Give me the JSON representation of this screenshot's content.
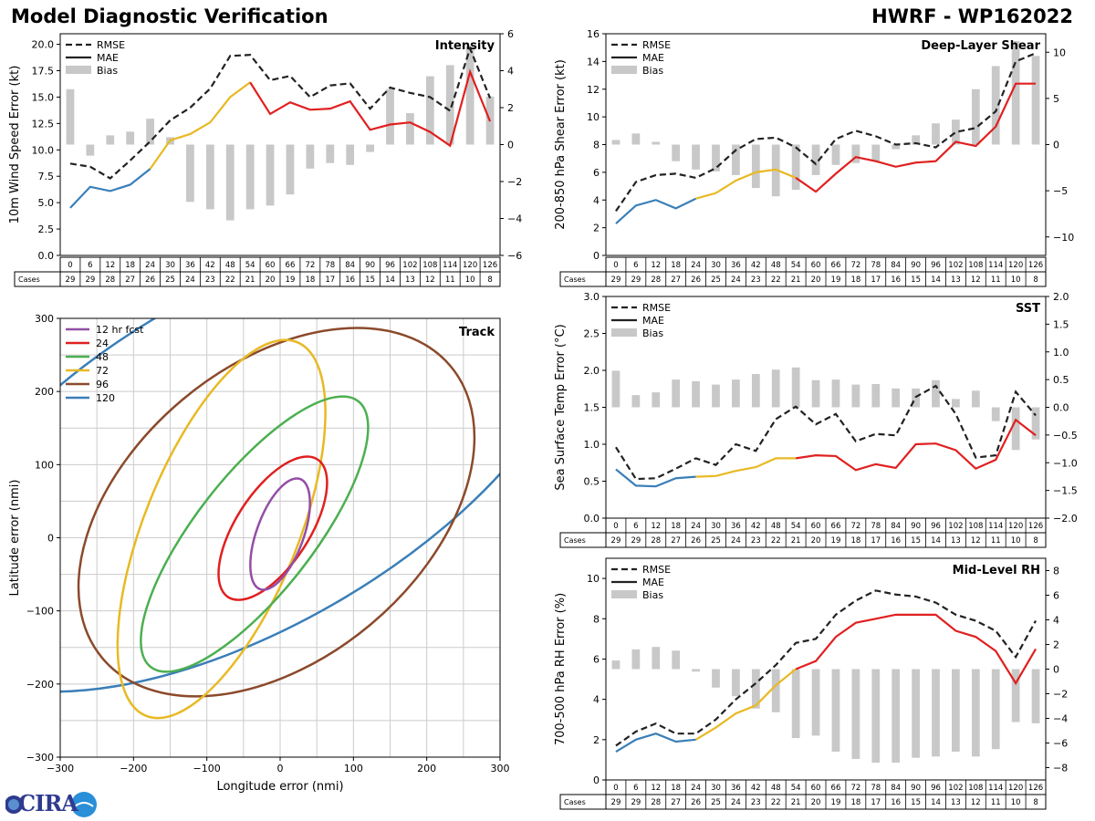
{
  "header": {
    "title": "Model Diagnostic Verification",
    "model": "HWRF - WP162022"
  },
  "logo": {
    "text": "CIRA"
  },
  "colors": {
    "early": "#3a7fb8",
    "mid": "#e8b923",
    "late": "#e02020",
    "rmse": "#222222",
    "bias": "#c8c8c8"
  },
  "legend_labels": {
    "rmse": "RMSE",
    "mae": "MAE",
    "bias": "Bias"
  },
  "cases_label": "Cases",
  "chart_data": [
    {
      "id": "intensity",
      "type": "line",
      "title": "Intensity",
      "ylabel": "10m Wind Speed Error (kt)",
      "ylim": [
        0,
        21
      ],
      "yticks": [
        0.0,
        2.5,
        5.0,
        7.5,
        10.0,
        12.5,
        15.0,
        17.5,
        20.0
      ],
      "ytick_decimals": 1,
      "y2lim": [
        -6,
        6
      ],
      "y2ticks": [
        -6,
        -4,
        -2,
        0,
        2,
        4,
        6
      ],
      "x": [
        0,
        6,
        12,
        18,
        24,
        30,
        36,
        42,
        48,
        54,
        60,
        66,
        72,
        78,
        84,
        90,
        96,
        102,
        108,
        114,
        120,
        126
      ],
      "cases": [
        29,
        29,
        28,
        27,
        26,
        25,
        24,
        23,
        22,
        21,
        20,
        19,
        18,
        17,
        16,
        15,
        14,
        13,
        12,
        11,
        10,
        8
      ],
      "series": [
        {
          "name": "RMSE",
          "values": [
            8.7,
            8.4,
            7.3,
            9.0,
            10.8,
            12.8,
            14.0,
            15.8,
            18.9,
            19.0,
            16.6,
            17.0,
            15.0,
            16.1,
            16.3,
            13.9,
            15.9,
            15.4,
            15.0,
            13.7,
            19.6,
            14.9
          ]
        },
        {
          "name": "MAE",
          "values": [
            4.5,
            6.5,
            6.1,
            6.7,
            8.2,
            10.9,
            11.5,
            12.6,
            15.0,
            16.4,
            13.4,
            14.5,
            13.8,
            13.9,
            14.6,
            11.9,
            12.4,
            12.6,
            11.7,
            10.4,
            17.4,
            12.7
          ]
        },
        {
          "name": "Bias",
          "axis": "right",
          "values": [
            3.0,
            -0.6,
            0.5,
            0.7,
            1.4,
            0.4,
            -3.1,
            -3.5,
            -4.1,
            -3.5,
            -3.3,
            -2.7,
            -1.3,
            -1.0,
            -1.1,
            -0.4,
            3.0,
            1.7,
            3.7,
            4.3,
            5.3,
            2.6
          ]
        }
      ]
    },
    {
      "id": "shear",
      "type": "line",
      "title": "Deep-Layer Shear",
      "ylabel": "200-850 hPa Shear Error (kt)",
      "ylim": [
        0,
        16
      ],
      "yticks": [
        0,
        2,
        4,
        6,
        8,
        10,
        12,
        14,
        16
      ],
      "ytick_decimals": 0,
      "y2lim": [
        -12,
        12
      ],
      "y2ticks": [
        -10,
        -5,
        0,
        5,
        10
      ],
      "x": [
        0,
        6,
        12,
        18,
        24,
        30,
        36,
        42,
        48,
        54,
        60,
        66,
        72,
        78,
        84,
        90,
        96,
        102,
        108,
        114,
        120,
        126
      ],
      "cases": [
        29,
        29,
        28,
        27,
        26,
        25,
        24,
        23,
        22,
        21,
        20,
        19,
        18,
        17,
        16,
        15,
        14,
        13,
        12,
        11,
        10,
        8
      ],
      "series": [
        {
          "name": "RMSE",
          "values": [
            3.2,
            5.3,
            5.8,
            5.9,
            5.6,
            6.3,
            7.6,
            8.4,
            8.5,
            7.8,
            6.6,
            8.4,
            9.0,
            8.6,
            8.0,
            8.1,
            7.8,
            8.9,
            9.2,
            10.4,
            14.0,
            14.6
          ]
        },
        {
          "name": "MAE",
          "values": [
            2.3,
            3.6,
            4.0,
            3.4,
            4.1,
            4.5,
            5.4,
            6.0,
            6.2,
            5.6,
            4.6,
            5.9,
            7.1,
            6.8,
            6.4,
            6.7,
            6.8,
            8.2,
            7.9,
            9.3,
            12.4,
            12.4
          ]
        },
        {
          "name": "Bias",
          "axis": "right",
          "values": [
            0.5,
            1.2,
            0.3,
            -1.8,
            -2.7,
            -2.9,
            -3.3,
            -4.7,
            -5.6,
            -4.9,
            -3.3,
            -2.2,
            -2.0,
            -1.8,
            -0.5,
            1.0,
            2.3,
            2.7,
            6.0,
            8.5,
            11.2,
            9.6
          ]
        }
      ]
    },
    {
      "id": "sst",
      "type": "line",
      "title": "SST",
      "ylabel": "Sea Surface Temp Error (°C)",
      "ylim": [
        0,
        3
      ],
      "yticks": [
        0.0,
        0.5,
        1.0,
        1.5,
        2.0,
        2.5,
        3.0
      ],
      "ytick_decimals": 1,
      "y2lim": [
        -2,
        2
      ],
      "y2ticks": [
        -2.0,
        -1.5,
        -1.0,
        -0.5,
        0.0,
        0.5,
        1.0,
        1.5,
        2.0
      ],
      "x": [
        0,
        6,
        12,
        18,
        24,
        30,
        36,
        42,
        48,
        54,
        60,
        66,
        72,
        78,
        84,
        90,
        96,
        102,
        108,
        114,
        120,
        126
      ],
      "cases": [
        29,
        29,
        28,
        27,
        26,
        25,
        24,
        23,
        22,
        21,
        20,
        19,
        18,
        17,
        16,
        15,
        14,
        13,
        12,
        11,
        10,
        8
      ],
      "series": [
        {
          "name": "RMSE",
          "values": [
            0.96,
            0.53,
            0.54,
            0.67,
            0.81,
            0.72,
            1.0,
            0.91,
            1.34,
            1.51,
            1.27,
            1.41,
            1.04,
            1.14,
            1.12,
            1.64,
            1.79,
            1.41,
            0.82,
            0.85,
            1.71,
            1.39
          ]
        },
        {
          "name": "MAE",
          "values": [
            0.66,
            0.44,
            0.43,
            0.54,
            0.56,
            0.57,
            0.64,
            0.69,
            0.81,
            0.81,
            0.85,
            0.84,
            0.65,
            0.73,
            0.68,
            1.0,
            1.01,
            0.92,
            0.67,
            0.79,
            1.33,
            1.12
          ]
        },
        {
          "name": "Bias",
          "axis": "right",
          "values": [
            0.66,
            0.22,
            0.27,
            0.5,
            0.47,
            0.41,
            0.5,
            0.6,
            0.68,
            0.72,
            0.49,
            0.5,
            0.41,
            0.42,
            0.34,
            0.34,
            0.49,
            0.15,
            0.3,
            -0.25,
            -0.77,
            -0.58
          ]
        }
      ]
    },
    {
      "id": "rh",
      "type": "line",
      "title": "Mid-Level RH",
      "ylabel": "700-500 hPa RH Error (%)",
      "ylim": [
        0,
        11
      ],
      "yticks": [
        0,
        2,
        4,
        6,
        8,
        10
      ],
      "ytick_decimals": 0,
      "y2lim": [
        -9,
        9
      ],
      "y2ticks": [
        -8,
        -6,
        -4,
        -2,
        0,
        2,
        4,
        6,
        8
      ],
      "x": [
        0,
        6,
        12,
        18,
        24,
        30,
        36,
        42,
        48,
        54,
        60,
        66,
        72,
        78,
        84,
        90,
        96,
        102,
        108,
        114,
        120,
        126
      ],
      "cases": [
        29,
        29,
        28,
        27,
        26,
        25,
        24,
        23,
        22,
        21,
        20,
        19,
        18,
        17,
        16,
        15,
        14,
        13,
        12,
        11,
        10,
        8
      ],
      "series": [
        {
          "name": "RMSE",
          "values": [
            1.7,
            2.4,
            2.8,
            2.3,
            2.3,
            3.0,
            4.0,
            4.8,
            5.7,
            6.8,
            7.0,
            8.2,
            8.9,
            9.4,
            9.2,
            9.1,
            8.8,
            8.2,
            7.9,
            7.4,
            6.1,
            7.9
          ]
        },
        {
          "name": "MAE",
          "values": [
            1.4,
            2.0,
            2.3,
            1.9,
            2.0,
            2.6,
            3.3,
            3.7,
            4.7,
            5.5,
            5.9,
            7.1,
            7.8,
            8.0,
            8.2,
            8.2,
            8.2,
            7.4,
            7.1,
            6.4,
            4.8,
            6.5
          ]
        },
        {
          "name": "Bias",
          "axis": "right",
          "values": [
            0.7,
            1.6,
            1.8,
            1.5,
            -0.2,
            -1.5,
            -2.2,
            -3.2,
            -3.5,
            -5.6,
            -5.4,
            -6.7,
            -7.3,
            -7.6,
            -7.6,
            -7.2,
            -7.1,
            -6.7,
            -7.1,
            -6.5,
            -4.3,
            -4.4
          ]
        }
      ]
    },
    {
      "id": "track",
      "type": "scatter",
      "title": "Track",
      "xlabel": "Longitude error (nmi)",
      "ylabel": "Latitude error (nmi)",
      "xlim": [
        -300,
        300
      ],
      "ylim": [
        -300,
        300
      ],
      "xticks": [
        -300,
        -200,
        -100,
        0,
        100,
        200,
        300
      ],
      "yticks": [
        -300,
        -200,
        -100,
        0,
        100,
        200,
        300
      ],
      "ellipses": [
        {
          "label": "12 hr fcst",
          "color": "#944ea6",
          "cx": 0,
          "cy": 5,
          "a": 80,
          "b": 32,
          "angle": 70
        },
        {
          "label": "24",
          "color": "#e02020",
          "cx": -10,
          "cy": 13,
          "a": 112,
          "b": 50,
          "angle": 57
        },
        {
          "label": "48",
          "color": "#4caf50",
          "cx": -35,
          "cy": 5,
          "a": 230,
          "b": 80,
          "angle": 52
        },
        {
          "label": "72",
          "color": "#e8b923",
          "cx": -80,
          "cy": 12,
          "a": 275,
          "b": 105,
          "angle": 68
        },
        {
          "label": "96",
          "color": "#8b4a2b",
          "cx": -5,
          "cy": 35,
          "a": 310,
          "b": 200,
          "angle": 40
        },
        {
          "label": "120",
          "color": "#3a7fb8",
          "cx": -40,
          "cy": 110,
          "a": 500,
          "b": 230,
          "angle": 30
        }
      ]
    }
  ]
}
